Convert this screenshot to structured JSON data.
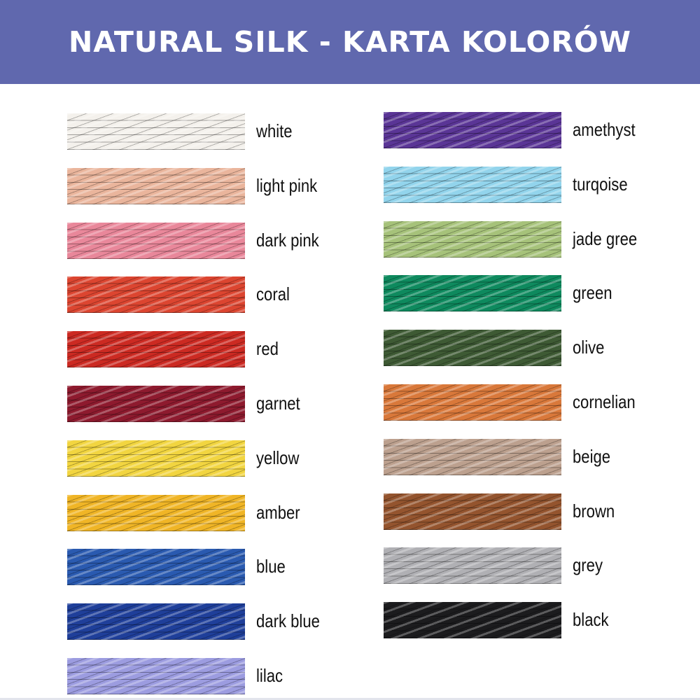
{
  "header": {
    "title": "NATURAL SILK - KARTA KOLORÓW",
    "background": "#6068ae"
  },
  "left_column": [
    {
      "label": "white",
      "color": "#f4f1ec"
    },
    {
      "label": "light pink",
      "color": "#eab59c"
    },
    {
      "label": "dark pink",
      "color": "#e9879a"
    },
    {
      "label": "coral",
      "color": "#dc4530"
    },
    {
      "label": "red",
      "color": "#cc2a22"
    },
    {
      "label": "garnet",
      "color": "#8e1a2e"
    },
    {
      "label": "yellow",
      "color": "#f2d540"
    },
    {
      "label": "amber",
      "color": "#f0b526"
    },
    {
      "label": "blue",
      "color": "#2a5ab0"
    },
    {
      "label": "dark blue",
      "color": "#1f3f9a"
    },
    {
      "label": "lilac",
      "color": "#9c9ce0"
    }
  ],
  "right_column": [
    {
      "label": "amethyst",
      "color": "#5a3596"
    },
    {
      "label": "turqoise",
      "color": "#92d4ec"
    },
    {
      "label": "jade gree",
      "color": "#a6c27a"
    },
    {
      "label": "green",
      "color": "#0e8a5e"
    },
    {
      "label": "olive",
      "color": "#3e5a34"
    },
    {
      "label": "cornelian",
      "color": "#d9783a"
    },
    {
      "label": "beige",
      "color": "#bca08e"
    },
    {
      "label": "brown",
      "color": "#94542e"
    },
    {
      "label": "grey",
      "color": "#b0b0b4"
    },
    {
      "label": "black",
      "color": "#1c1c1e"
    }
  ]
}
